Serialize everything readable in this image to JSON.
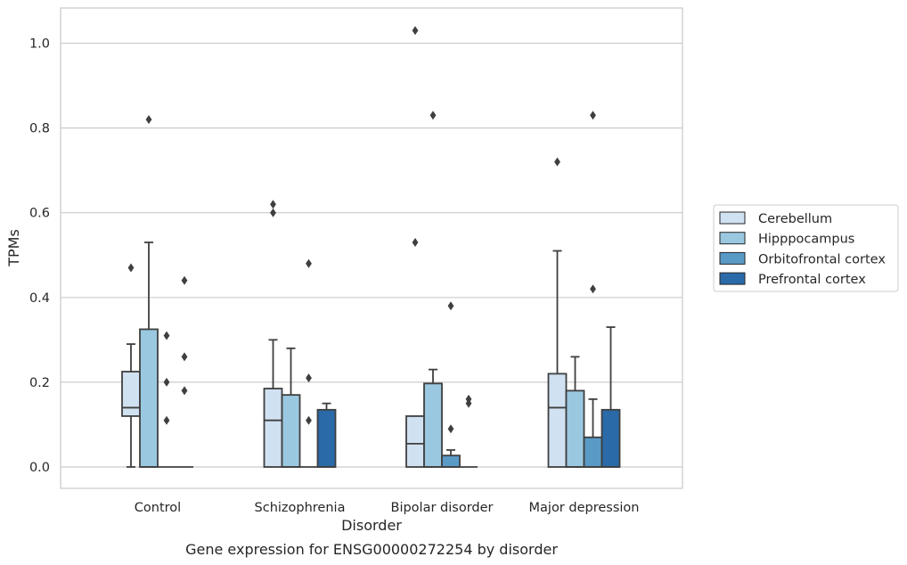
{
  "caption": "Gene expression for ENSG00000272254 by disorder",
  "chart_data": {
    "type": "box",
    "title": "",
    "xlabel": "Disorder",
    "ylabel": "TPMs",
    "ylim": [
      -0.05,
      1.08
    ],
    "yticks": [
      0.0,
      0.2,
      0.4,
      0.6,
      0.8,
      1.0
    ],
    "ytick_labels": [
      "0.0",
      "0.2",
      "0.4",
      "0.6",
      "0.8",
      "1.0"
    ],
    "grid": "horizontal",
    "legend_placement": "right",
    "categories": [
      "Control",
      "Schizophrenia",
      "Bipolar disorder",
      "Major depression"
    ],
    "series": [
      {
        "name": "Cerebellum",
        "color": "#d0e1f2",
        "boxes": [
          {
            "q1": 0.12,
            "median": 0.14,
            "q3": 0.225,
            "whisker_low": 0.0,
            "whisker_high": 0.29,
            "outliers": [
              0.47
            ]
          },
          {
            "q1": 0.0,
            "median": 0.11,
            "q3": 0.185,
            "whisker_low": 0.0,
            "whisker_high": 0.3,
            "outliers": [
              0.6,
              0.62
            ]
          },
          {
            "q1": 0.0,
            "median": 0.055,
            "q3": 0.12,
            "whisker_low": 0.0,
            "whisker_high": 0.12,
            "outliers": [
              0.53,
              1.03
            ]
          },
          {
            "q1": 0.0,
            "median": 0.14,
            "q3": 0.22,
            "whisker_low": 0.0,
            "whisker_high": 0.51,
            "outliers": [
              0.72
            ]
          }
        ]
      },
      {
        "name": "Hipppocampus",
        "color": "#9ac8e0",
        "boxes": [
          {
            "q1": 0.0,
            "median": 0.0,
            "q3": 0.325,
            "whisker_low": 0.0,
            "whisker_high": 0.53,
            "outliers": [
              0.82
            ]
          },
          {
            "q1": 0.0,
            "median": 0.0,
            "q3": 0.17,
            "whisker_low": 0.0,
            "whisker_high": 0.28,
            "outliers": []
          },
          {
            "q1": 0.0,
            "median": 0.0,
            "q3": 0.197,
            "whisker_low": 0.0,
            "whisker_high": 0.23,
            "outliers": [
              0.83
            ]
          },
          {
            "q1": 0.0,
            "median": 0.0,
            "q3": 0.18,
            "whisker_low": 0.0,
            "whisker_high": 0.26,
            "outliers": []
          }
        ]
      },
      {
        "name": "Orbitofrontal cortex",
        "color": "#5a9ac7",
        "boxes": [
          {
            "q1": 0.0,
            "median": 0.0,
            "q3": 0.0,
            "whisker_low": 0.0,
            "whisker_high": 0.0,
            "outliers": [
              0.11,
              0.2,
              0.31
            ]
          },
          {
            "q1": 0.0,
            "median": 0.0,
            "q3": 0.0,
            "whisker_low": 0.0,
            "whisker_high": 0.0,
            "outliers": [
              0.11,
              0.21,
              0.48
            ]
          },
          {
            "q1": 0.0,
            "median": 0.0,
            "q3": 0.027,
            "whisker_low": 0.0,
            "whisker_high": 0.04,
            "outliers": [
              0.09,
              0.38
            ]
          },
          {
            "q1": 0.0,
            "median": 0.0,
            "q3": 0.07,
            "whisker_low": 0.0,
            "whisker_high": 0.16,
            "outliers": [
              0.42,
              0.83
            ]
          }
        ]
      },
      {
        "name": "Prefrontal cortex",
        "color": "#2b6aa8",
        "boxes": [
          {
            "q1": 0.0,
            "median": 0.0,
            "q3": 0.0,
            "whisker_low": 0.0,
            "whisker_high": 0.0,
            "outliers": [
              0.18,
              0.26,
              0.44
            ]
          },
          {
            "q1": 0.0,
            "median": 0.0,
            "q3": 0.135,
            "whisker_low": 0.0,
            "whisker_high": 0.15,
            "outliers": []
          },
          {
            "q1": 0.0,
            "median": 0.0,
            "q3": 0.0,
            "whisker_low": 0.0,
            "whisker_high": 0.0,
            "outliers": [
              0.15,
              0.16
            ]
          },
          {
            "q1": 0.0,
            "median": 0.0,
            "q3": 0.135,
            "whisker_low": 0.0,
            "whisker_high": 0.33,
            "outliers": []
          }
        ]
      }
    ]
  }
}
